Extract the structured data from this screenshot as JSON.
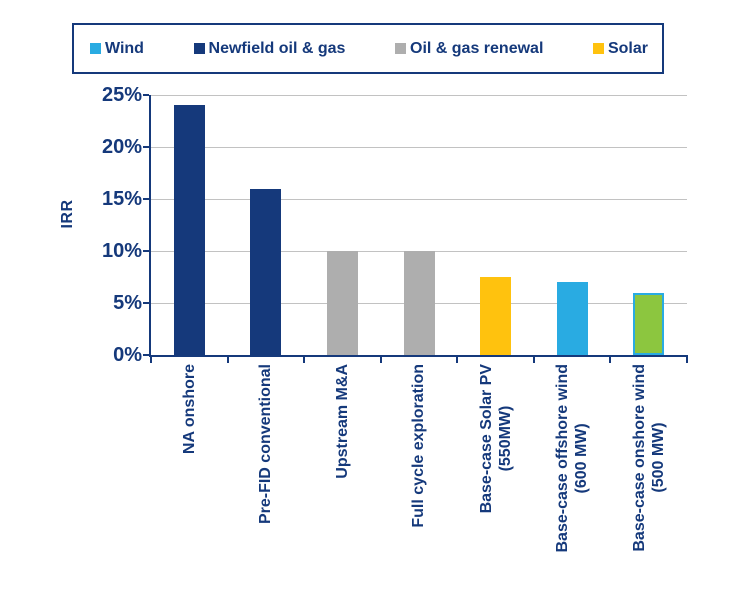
{
  "legend": {
    "items": [
      {
        "label": "Wind",
        "color": "#29ABE2"
      },
      {
        "label": "Newfield oil & gas",
        "color": "#15397B"
      },
      {
        "label": "Oil & gas renewal",
        "color": "#AEAEAE"
      },
      {
        "label": "Solar",
        "color": "#FFC20E"
      }
    ]
  },
  "chart_data": {
    "type": "bar",
    "title": "",
    "xlabel": "",
    "ylabel": "IRR",
    "ylim": [
      0,
      25
    ],
    "ytick_step": 5,
    "ytick_labels": [
      "0%",
      "5%",
      "10%",
      "15%",
      "20%",
      "25%"
    ],
    "grid": true,
    "legend_position": "top",
    "categories": [
      "NA onshore",
      "Pre-FID conventional",
      "Upstream M&A",
      "Full cycle exploration",
      "Base-case Solar PV\n(550MW)",
      "Base-case offshore wind\n(600 MW)",
      "Base-case onshore wind\n(500 MW)"
    ],
    "values": [
      24,
      16,
      10,
      10,
      7.5,
      7,
      6
    ],
    "bar_colors": [
      "#15397B",
      "#15397B",
      "#AEAEAE",
      "#AEAEAE",
      "#FFC20E",
      "#29ABE2",
      "#8CC63F"
    ],
    "bar_borders": [
      null,
      null,
      null,
      null,
      null,
      null,
      "#29ABE2"
    ],
    "unit": "%"
  },
  "colors": {
    "navy": "#15397B",
    "wind_blue": "#29ABE2",
    "solar_yellow": "#FFC20E",
    "renewal_gray": "#AEAEAE",
    "onshore_green": "#8CC63F",
    "gridline": "#C2C2C2",
    "background": "#FFFFFF"
  }
}
